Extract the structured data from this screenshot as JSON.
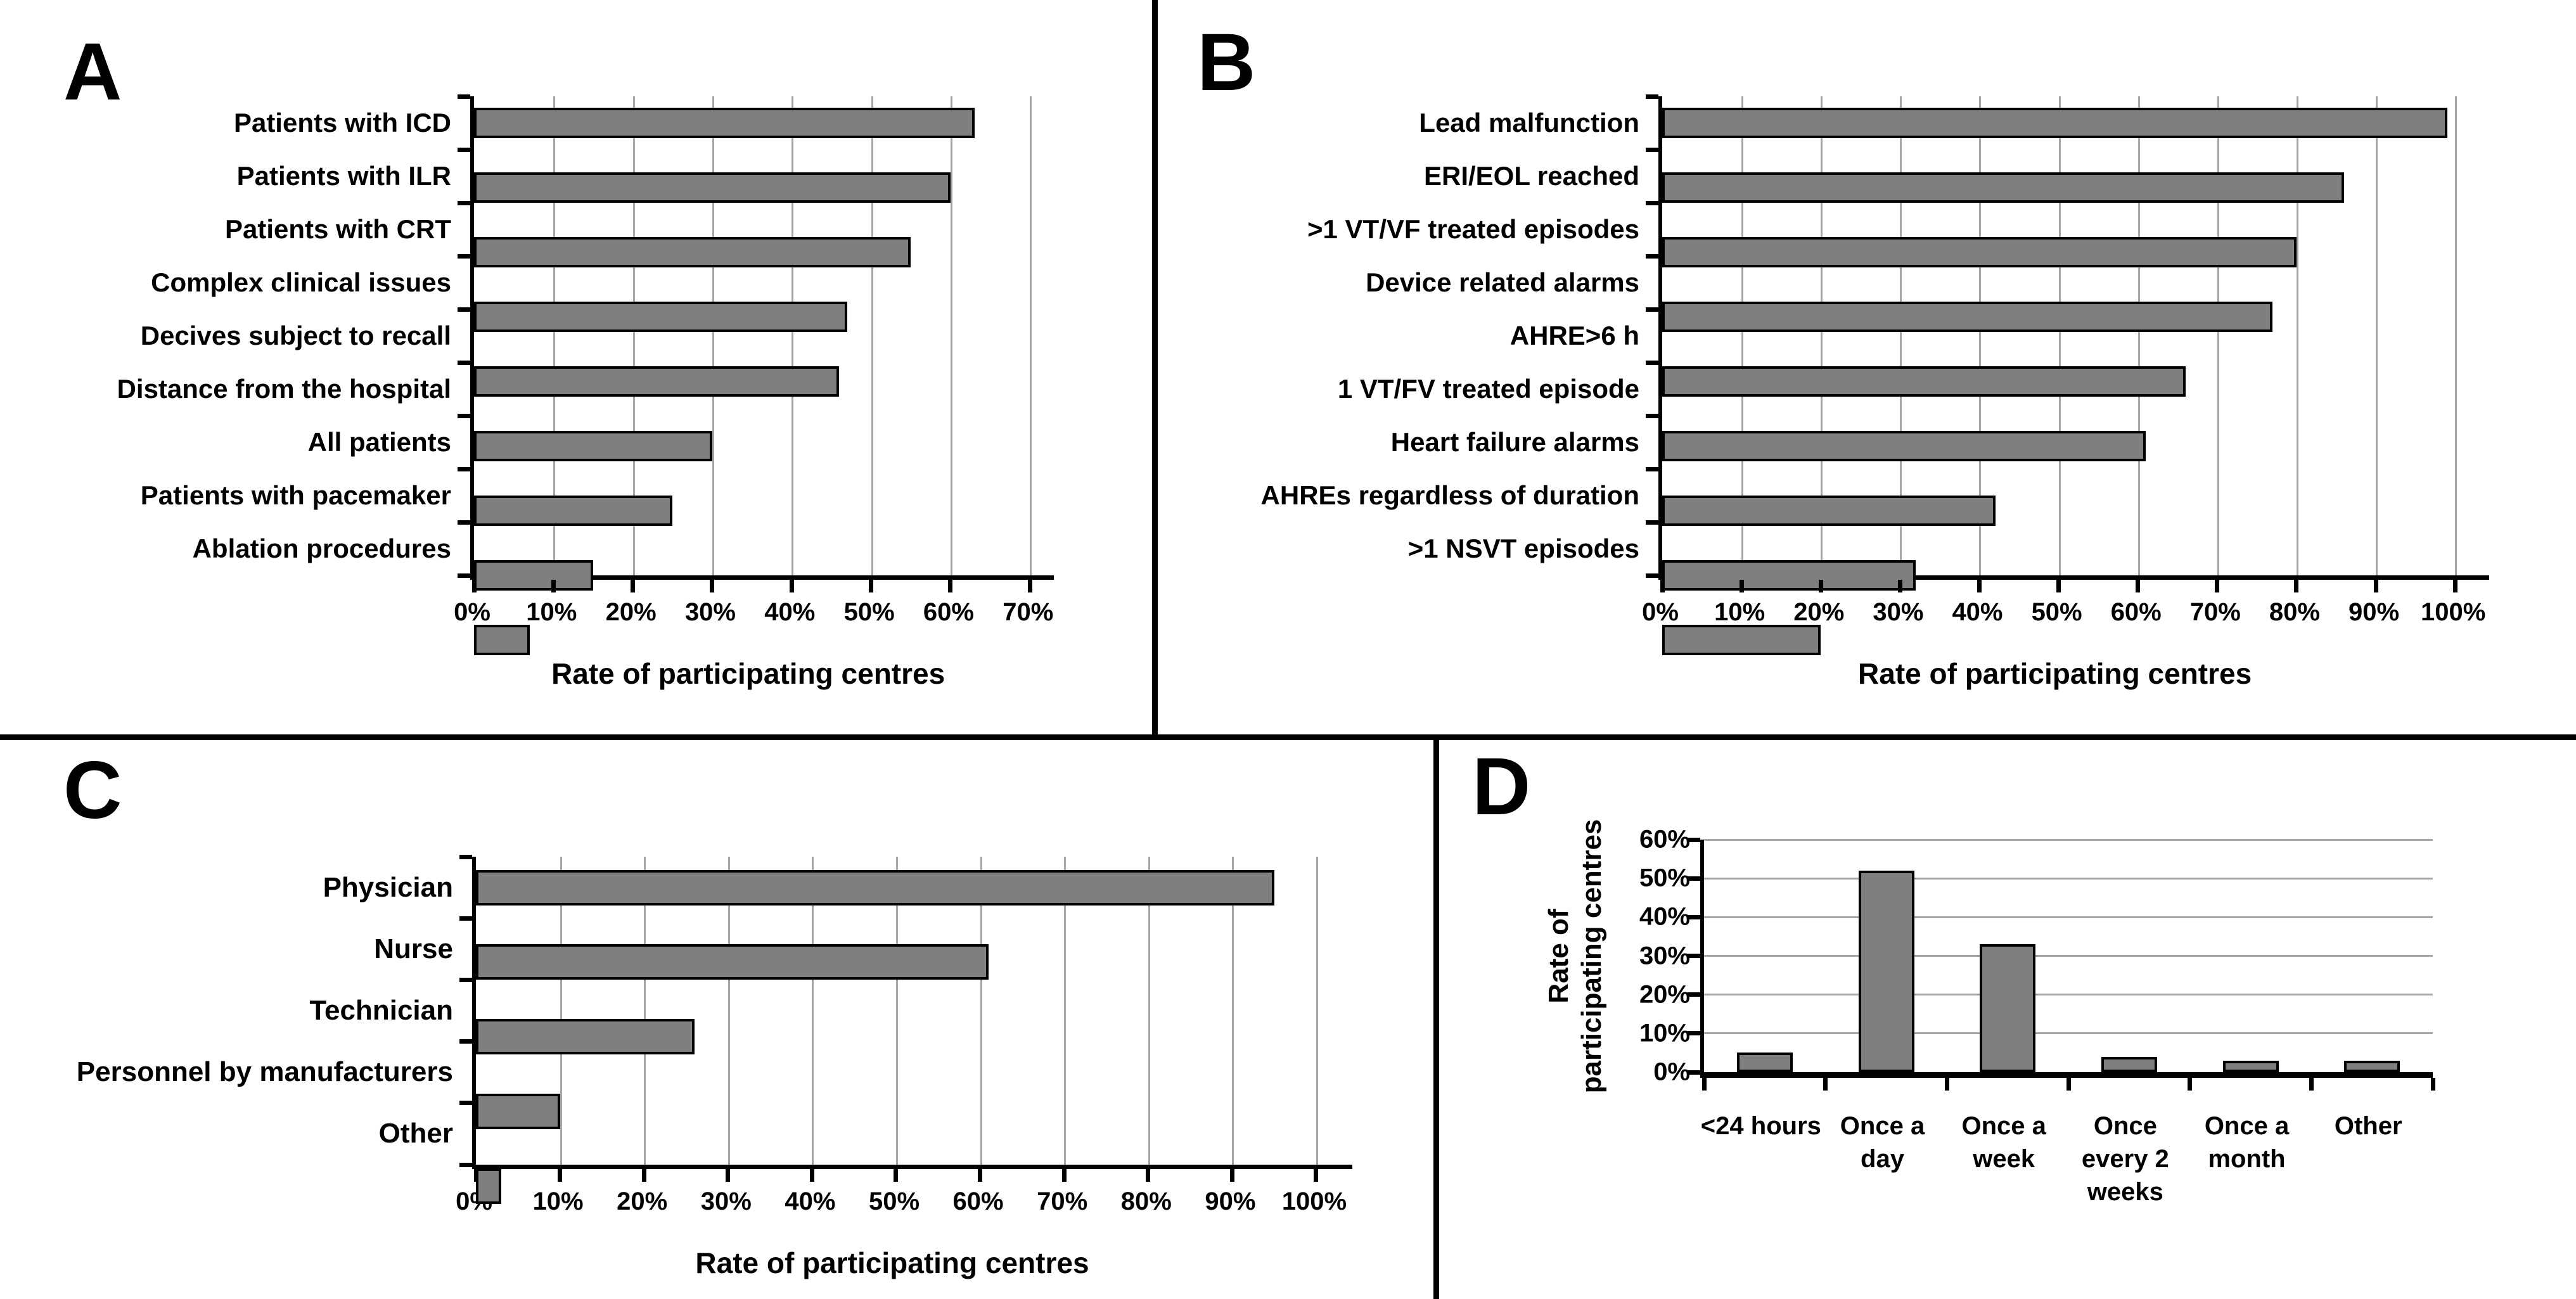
{
  "figure": {
    "background": "#ffffff"
  },
  "panels": [
    {
      "letter": "A"
    },
    {
      "letter": "B"
    },
    {
      "letter": "C"
    },
    {
      "letter": "D"
    }
  ],
  "styles": {
    "bar_fill": "#7f7f7f",
    "bar_border": "#000000",
    "gridline": "#a6a6a6",
    "axis": "#000000",
    "text": "#000000",
    "divider": "#000000"
  },
  "chart_data": [
    {
      "panel": "A",
      "type": "bar",
      "orientation": "horizontal",
      "categories": [
        "Patients with ICD",
        "Patients with ILR",
        "Patients with CRT",
        "Complex clinical issues",
        "Decives subject to recall",
        "Distance from the hospital",
        "All patients",
        "Patients with pacemaker",
        "Ablation procedures"
      ],
      "values": [
        63,
        60,
        55,
        47,
        46,
        30,
        25,
        15,
        7
      ],
      "xlabel": "Rate of participating centres",
      "xlim": [
        0,
        70
      ],
      "xtick_step": 10,
      "tick_format": "percent",
      "grid": true,
      "legend": false
    },
    {
      "panel": "B",
      "type": "bar",
      "orientation": "horizontal",
      "categories": [
        "Lead malfunction",
        "ERI/EOL reached",
        ">1 VT/VF treated episodes",
        "Device related alarms",
        "AHRE>6 h",
        "1 VT/FV treated episode",
        "Heart failure alarms",
        "AHREs regardless of duration",
        ">1 NSVT episodes"
      ],
      "values": [
        99,
        86,
        80,
        77,
        66,
        61,
        42,
        32,
        20
      ],
      "xlabel": "Rate of participating centres",
      "xlim": [
        0,
        100
      ],
      "xtick_step": 10,
      "tick_format": "percent",
      "grid": true,
      "legend": false
    },
    {
      "panel": "C",
      "type": "bar",
      "orientation": "horizontal",
      "categories": [
        "Physician",
        "Nurse",
        "Technician",
        "Personnel by manufacturers",
        "Other"
      ],
      "values": [
        95,
        61,
        26,
        10,
        3
      ],
      "xlabel": "Rate of participating centres",
      "xlim": [
        0,
        100
      ],
      "xtick_step": 10,
      "tick_format": "percent",
      "grid": true,
      "legend": false
    },
    {
      "panel": "D",
      "type": "bar",
      "orientation": "vertical",
      "categories": [
        "<24 hours",
        "Once a\nday",
        "Once a\nweek",
        "Once\nevery 2\nweeks",
        "Once a\nmonth",
        "Other"
      ],
      "values": [
        5,
        52,
        33,
        4,
        3,
        3
      ],
      "ylabel": "Rate of\nparticipating centres",
      "ylim": [
        0,
        60
      ],
      "ytick_step": 10,
      "tick_format": "percent",
      "grid": true,
      "legend": false
    }
  ]
}
